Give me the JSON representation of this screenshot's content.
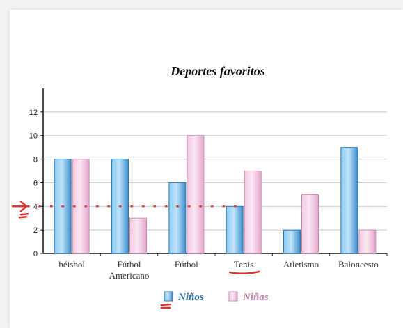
{
  "chart_data": {
    "type": "bar",
    "title": "Deportes favoritos",
    "categories": [
      [
        "béisbol"
      ],
      [
        "Fútbol",
        "Americano"
      ],
      [
        "Fútbol"
      ],
      [
        "Tenis"
      ],
      [
        "Atletismo"
      ],
      [
        "Baloncesto"
      ]
    ],
    "series": [
      {
        "name": "Niños",
        "values": [
          8,
          8,
          6,
          4,
          2,
          9
        ],
        "color": "#4ea3dd"
      },
      {
        "name": "Niñas",
        "values": [
          8,
          3,
          10,
          7,
          5,
          2
        ],
        "color": "#f1c2e0"
      }
    ],
    "ylim": [
      0,
      14
    ],
    "yticks": [
      0,
      2,
      4,
      6,
      8,
      10,
      12
    ],
    "grid": true,
    "legend_position": "bottom",
    "annotations": {
      "reference_line_value": 4,
      "reference_line_color": "#e0332a",
      "underlined_category": "Tenis"
    }
  }
}
